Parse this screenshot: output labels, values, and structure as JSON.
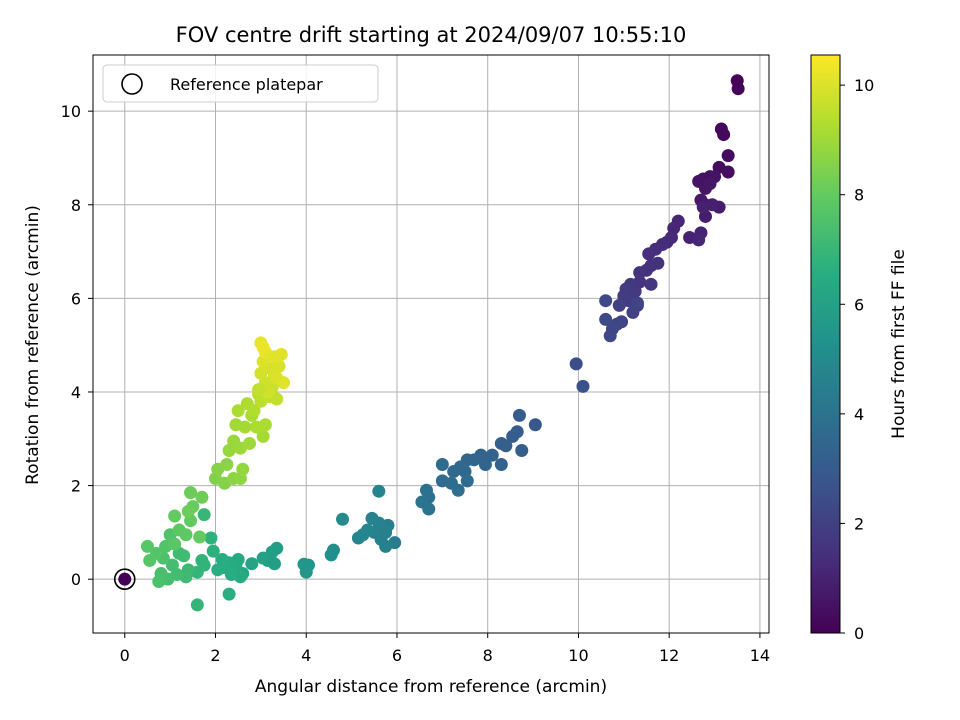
{
  "chart_data": {
    "type": "scatter",
    "title": "FOV centre drift starting at 2024/09/07 10:55:10",
    "xlabel": "Angular distance from reference (arcmin)",
    "ylabel": "Rotation from reference (arcmin)",
    "xlim": [
      -0.7,
      14.2
    ],
    "ylim": [
      -1.15,
      11.2
    ],
    "xticks": [
      "0",
      "2",
      "4",
      "6",
      "8",
      "10",
      "12",
      "14"
    ],
    "yticks": [
      "0",
      "2",
      "4",
      "6",
      "8",
      "10"
    ],
    "grid": true,
    "legend": {
      "placement": "top-left",
      "entries": [
        "Reference platepar"
      ]
    },
    "colorbar": {
      "label": "Hours from first FF file",
      "range": [
        0,
        10.55
      ],
      "ticks": [
        "0",
        "2",
        "4",
        "6",
        "8",
        "10"
      ],
      "colormap": "viridis"
    },
    "reference_point": {
      "x": 0,
      "y": 0,
      "hours": 0
    },
    "points": [
      {
        "x": 13.5,
        "y": 10.65,
        "h": 0.05
      },
      {
        "x": 13.52,
        "y": 10.48,
        "h": 0.1
      },
      {
        "x": 13.15,
        "y": 9.62,
        "h": 0.2
      },
      {
        "x": 13.2,
        "y": 9.5,
        "h": 0.25
      },
      {
        "x": 13.3,
        "y": 9.05,
        "h": 0.3
      },
      {
        "x": 13.1,
        "y": 8.8,
        "h": 0.35
      },
      {
        "x": 13.3,
        "y": 8.7,
        "h": 0.4
      },
      {
        "x": 12.9,
        "y": 8.6,
        "h": 0.45
      },
      {
        "x": 12.75,
        "y": 8.55,
        "h": 0.5
      },
      {
        "x": 12.65,
        "y": 8.5,
        "h": 0.55
      },
      {
        "x": 13.0,
        "y": 8.6,
        "h": 0.55
      },
      {
        "x": 12.8,
        "y": 8.35,
        "h": 0.6
      },
      {
        "x": 12.7,
        "y": 8.1,
        "h": 0.7
      },
      {
        "x": 12.8,
        "y": 8.0,
        "h": 0.75
      },
      {
        "x": 13.1,
        "y": 7.95,
        "h": 0.8
      },
      {
        "x": 12.8,
        "y": 7.75,
        "h": 0.85
      },
      {
        "x": 12.95,
        "y": 8.0,
        "h": 0.9
      },
      {
        "x": 12.75,
        "y": 7.95,
        "h": 0.95
      },
      {
        "x": 12.9,
        "y": 8.45,
        "h": 0.65
      },
      {
        "x": 12.45,
        "y": 7.3,
        "h": 1.0
      },
      {
        "x": 12.2,
        "y": 7.65,
        "h": 1.1
      },
      {
        "x": 12.1,
        "y": 7.5,
        "h": 1.15
      },
      {
        "x": 12.05,
        "y": 7.3,
        "h": 1.2
      },
      {
        "x": 11.95,
        "y": 7.2,
        "h": 1.25
      },
      {
        "x": 11.85,
        "y": 7.15,
        "h": 1.3
      },
      {
        "x": 12.7,
        "y": 7.4,
        "h": 1.05
      },
      {
        "x": 12.65,
        "y": 7.25,
        "h": 1.1
      },
      {
        "x": 11.7,
        "y": 7.05,
        "h": 1.35
      },
      {
        "x": 11.55,
        "y": 6.95,
        "h": 1.4
      },
      {
        "x": 11.6,
        "y": 6.7,
        "h": 1.45
      },
      {
        "x": 11.5,
        "y": 6.6,
        "h": 1.5
      },
      {
        "x": 11.75,
        "y": 6.75,
        "h": 1.5
      },
      {
        "x": 11.35,
        "y": 6.55,
        "h": 1.55
      },
      {
        "x": 11.35,
        "y": 6.35,
        "h": 1.6
      },
      {
        "x": 11.6,
        "y": 6.3,
        "h": 1.65
      },
      {
        "x": 11.15,
        "y": 6.3,
        "h": 1.7
      },
      {
        "x": 11.25,
        "y": 6.15,
        "h": 1.75
      },
      {
        "x": 11.05,
        "y": 6.2,
        "h": 1.8
      },
      {
        "x": 11.0,
        "y": 6.05,
        "h": 1.85
      },
      {
        "x": 11.1,
        "y": 5.95,
        "h": 1.9
      },
      {
        "x": 11.3,
        "y": 5.85,
        "h": 1.95
      },
      {
        "x": 10.9,
        "y": 5.85,
        "h": 2.0
      },
      {
        "x": 11.2,
        "y": 5.7,
        "h": 2.05
      },
      {
        "x": 11.3,
        "y": 5.9,
        "h": 2.1
      },
      {
        "x": 10.95,
        "y": 5.5,
        "h": 2.15
      },
      {
        "x": 10.85,
        "y": 5.45,
        "h": 2.2
      },
      {
        "x": 10.75,
        "y": 5.35,
        "h": 2.25
      },
      {
        "x": 10.7,
        "y": 5.2,
        "h": 2.3
      },
      {
        "x": 10.6,
        "y": 5.95,
        "h": 2.3
      },
      {
        "x": 10.6,
        "y": 5.55,
        "h": 2.35
      },
      {
        "x": 9.95,
        "y": 4.6,
        "h": 2.5
      },
      {
        "x": 10.1,
        "y": 4.12,
        "h": 2.6
      },
      {
        "x": 9.05,
        "y": 3.3,
        "h": 2.9
      },
      {
        "x": 8.7,
        "y": 3.5,
        "h": 3.0
      },
      {
        "x": 8.65,
        "y": 3.15,
        "h": 3.05
      },
      {
        "x": 8.55,
        "y": 3.05,
        "h": 3.1
      },
      {
        "x": 8.3,
        "y": 2.9,
        "h": 3.2
      },
      {
        "x": 8.4,
        "y": 2.85,
        "h": 3.2
      },
      {
        "x": 8.75,
        "y": 2.75,
        "h": 3.15
      },
      {
        "x": 8.1,
        "y": 2.65,
        "h": 3.3
      },
      {
        "x": 7.85,
        "y": 2.65,
        "h": 3.35
      },
      {
        "x": 7.95,
        "y": 2.45,
        "h": 3.4
      },
      {
        "x": 8.3,
        "y": 2.45,
        "h": 3.3
      },
      {
        "x": 7.7,
        "y": 2.55,
        "h": 3.45
      },
      {
        "x": 7.55,
        "y": 2.55,
        "h": 3.5
      },
      {
        "x": 7.4,
        "y": 2.4,
        "h": 3.55
      },
      {
        "x": 7.25,
        "y": 2.3,
        "h": 3.6
      },
      {
        "x": 7.5,
        "y": 2.3,
        "h": 3.6
      },
      {
        "x": 7.0,
        "y": 2.45,
        "h": 3.65
      },
      {
        "x": 7.0,
        "y": 2.1,
        "h": 3.7
      },
      {
        "x": 7.2,
        "y": 2.05,
        "h": 3.75
      },
      {
        "x": 7.35,
        "y": 1.9,
        "h": 3.8
      },
      {
        "x": 7.55,
        "y": 2.1,
        "h": 3.75
      },
      {
        "x": 6.65,
        "y": 1.9,
        "h": 3.9
      },
      {
        "x": 6.7,
        "y": 1.75,
        "h": 3.95
      },
      {
        "x": 6.55,
        "y": 1.65,
        "h": 4.0
      },
      {
        "x": 6.7,
        "y": 1.5,
        "h": 4.05
      },
      {
        "x": 5.95,
        "y": 0.78,
        "h": 4.4
      },
      {
        "x": 5.8,
        "y": 1.15,
        "h": 4.5
      },
      {
        "x": 5.75,
        "y": 1.0,
        "h": 4.55
      },
      {
        "x": 5.65,
        "y": 1.1,
        "h": 4.6
      },
      {
        "x": 5.6,
        "y": 1.2,
        "h": 4.6
      },
      {
        "x": 5.5,
        "y": 1.0,
        "h": 4.65
      },
      {
        "x": 5.45,
        "y": 1.3,
        "h": 4.7
      },
      {
        "x": 5.35,
        "y": 1.05,
        "h": 4.75
      },
      {
        "x": 5.25,
        "y": 0.95,
        "h": 4.8
      },
      {
        "x": 5.15,
        "y": 0.88,
        "h": 4.85
      },
      {
        "x": 5.6,
        "y": 1.88,
        "h": 4.7
      },
      {
        "x": 5.75,
        "y": 0.7,
        "h": 4.6
      },
      {
        "x": 5.65,
        "y": 0.85,
        "h": 4.6
      },
      {
        "x": 4.8,
        "y": 1.28,
        "h": 5.0
      },
      {
        "x": 4.6,
        "y": 0.62,
        "h": 5.2
      },
      {
        "x": 4.55,
        "y": 0.52,
        "h": 5.25
      },
      {
        "x": 4.05,
        "y": 0.3,
        "h": 5.5
      },
      {
        "x": 4.0,
        "y": 0.15,
        "h": 5.55
      },
      {
        "x": 3.95,
        "y": 0.32,
        "h": 5.55
      },
      {
        "x": 3.35,
        "y": 0.66,
        "h": 5.8
      },
      {
        "x": 3.25,
        "y": 0.58,
        "h": 5.85
      },
      {
        "x": 3.15,
        "y": 0.4,
        "h": 5.9
      },
      {
        "x": 3.3,
        "y": 0.33,
        "h": 5.9
      },
      {
        "x": 3.05,
        "y": 0.45,
        "h": 6.0
      },
      {
        "x": 2.8,
        "y": 0.33,
        "h": 6.1
      },
      {
        "x": 2.6,
        "y": 0.12,
        "h": 6.2
      },
      {
        "x": 2.5,
        "y": 0.42,
        "h": 6.3
      },
      {
        "x": 2.45,
        "y": 0.3,
        "h": 6.35
      },
      {
        "x": 2.55,
        "y": 0.05,
        "h": 6.4
      },
      {
        "x": 2.3,
        "y": 0.35,
        "h": 6.45
      },
      {
        "x": 2.2,
        "y": 0.25,
        "h": 6.5
      },
      {
        "x": 2.15,
        "y": 0.42,
        "h": 6.55
      },
      {
        "x": 2.05,
        "y": 0.2,
        "h": 6.6
      },
      {
        "x": 2.35,
        "y": 0.1,
        "h": 6.5
      },
      {
        "x": 2.3,
        "y": -0.32,
        "h": 6.6
      },
      {
        "x": 1.95,
        "y": 0.6,
        "h": 6.7
      },
      {
        "x": 1.9,
        "y": 0.88,
        "h": 6.75
      },
      {
        "x": 1.7,
        "y": 0.4,
        "h": 6.8
      },
      {
        "x": 1.75,
        "y": 0.3,
        "h": 6.85
      },
      {
        "x": 1.6,
        "y": 0.15,
        "h": 6.9
      },
      {
        "x": 1.6,
        "y": -0.55,
        "h": 6.9
      },
      {
        "x": 1.75,
        "y": 1.38,
        "h": 7.0
      },
      {
        "x": 1.4,
        "y": 0.2,
        "h": 7.1
      },
      {
        "x": 1.35,
        "y": 0.05,
        "h": 7.15
      },
      {
        "x": 1.2,
        "y": 0.55,
        "h": 7.2
      },
      {
        "x": 1.15,
        "y": 0.1,
        "h": 7.25
      },
      {
        "x": 1.05,
        "y": 0.3,
        "h": 7.3
      },
      {
        "x": 0.95,
        "y": 0.0,
        "h": 7.35
      },
      {
        "x": 0.8,
        "y": 0.12,
        "h": 7.4
      },
      {
        "x": 0.75,
        "y": -0.05,
        "h": 7.45
      },
      {
        "x": 0.85,
        "y": 0.45,
        "h": 7.5
      },
      {
        "x": 1.3,
        "y": 0.5,
        "h": 7.2
      },
      {
        "x": 1.0,
        "y": 0.95,
        "h": 7.55
      },
      {
        "x": 0.9,
        "y": 0.7,
        "h": 7.6
      },
      {
        "x": 0.7,
        "y": 0.55,
        "h": 7.65
      },
      {
        "x": 0.55,
        "y": 0.4,
        "h": 7.7
      },
      {
        "x": 0.5,
        "y": 0.7,
        "h": 7.75
      },
      {
        "x": 1.1,
        "y": 0.75,
        "h": 7.8
      },
      {
        "x": 1.2,
        "y": 1.05,
        "h": 7.85
      },
      {
        "x": 1.35,
        "y": 0.95,
        "h": 7.9
      },
      {
        "x": 1.45,
        "y": 1.25,
        "h": 7.95
      },
      {
        "x": 1.1,
        "y": 1.35,
        "h": 8.0
      },
      {
        "x": 1.5,
        "y": 1.55,
        "h": 8.05
      },
      {
        "x": 1.4,
        "y": 1.45,
        "h": 8.1
      },
      {
        "x": 1.45,
        "y": 1.85,
        "h": 8.15
      },
      {
        "x": 1.7,
        "y": 1.75,
        "h": 8.2
      },
      {
        "x": 1.65,
        "y": 0.9,
        "h": 8.0
      },
      {
        "x": 2.0,
        "y": 2.15,
        "h": 8.5
      },
      {
        "x": 2.2,
        "y": 2.05,
        "h": 8.55
      },
      {
        "x": 2.05,
        "y": 2.35,
        "h": 8.6
      },
      {
        "x": 2.25,
        "y": 2.45,
        "h": 8.65
      },
      {
        "x": 2.4,
        "y": 2.15,
        "h": 8.7
      },
      {
        "x": 2.55,
        "y": 2.15,
        "h": 8.75
      },
      {
        "x": 2.6,
        "y": 2.35,
        "h": 8.8
      },
      {
        "x": 2.3,
        "y": 2.75,
        "h": 8.85
      },
      {
        "x": 2.4,
        "y": 2.95,
        "h": 8.9
      },
      {
        "x": 2.55,
        "y": 2.8,
        "h": 8.95
      },
      {
        "x": 2.75,
        "y": 2.9,
        "h": 9.0
      },
      {
        "x": 2.45,
        "y": 3.3,
        "h": 9.05
      },
      {
        "x": 2.65,
        "y": 3.25,
        "h": 9.1
      },
      {
        "x": 2.8,
        "y": 3.5,
        "h": 9.15
      },
      {
        "x": 2.5,
        "y": 3.6,
        "h": 9.2
      },
      {
        "x": 2.7,
        "y": 3.75,
        "h": 9.25
      },
      {
        "x": 2.85,
        "y": 3.6,
        "h": 9.3
      },
      {
        "x": 2.95,
        "y": 3.95,
        "h": 9.4
      },
      {
        "x": 3.05,
        "y": 3.05,
        "h": 9.1
      },
      {
        "x": 3.1,
        "y": 3.3,
        "h": 9.2
      },
      {
        "x": 2.9,
        "y": 3.25,
        "h": 9.2
      },
      {
        "x": 3.0,
        "y": 3.8,
        "h": 9.5
      },
      {
        "x": 3.2,
        "y": 3.9,
        "h": 9.55
      },
      {
        "x": 3.35,
        "y": 3.85,
        "h": 9.6
      },
      {
        "x": 3.25,
        "y": 4.1,
        "h": 9.7
      },
      {
        "x": 3.1,
        "y": 4.2,
        "h": 9.75
      },
      {
        "x": 3.3,
        "y": 4.35,
        "h": 9.8
      },
      {
        "x": 3.0,
        "y": 4.4,
        "h": 9.85
      },
      {
        "x": 3.2,
        "y": 4.5,
        "h": 9.9
      },
      {
        "x": 3.4,
        "y": 4.55,
        "h": 9.95
      },
      {
        "x": 3.05,
        "y": 4.65,
        "h": 10.0
      },
      {
        "x": 3.3,
        "y": 4.75,
        "h": 10.05
      },
      {
        "x": 3.45,
        "y": 4.8,
        "h": 10.1
      },
      {
        "x": 3.1,
        "y": 4.85,
        "h": 10.15
      },
      {
        "x": 3.0,
        "y": 5.05,
        "h": 10.2
      },
      {
        "x": 3.05,
        "y": 4.95,
        "h": 10.25
      },
      {
        "x": 3.35,
        "y": 4.3,
        "h": 10.0
      },
      {
        "x": 3.5,
        "y": 4.2,
        "h": 10.05
      },
      {
        "x": 3.15,
        "y": 4.0,
        "h": 9.8
      },
      {
        "x": 2.95,
        "y": 4.05,
        "h": 9.6
      }
    ]
  }
}
